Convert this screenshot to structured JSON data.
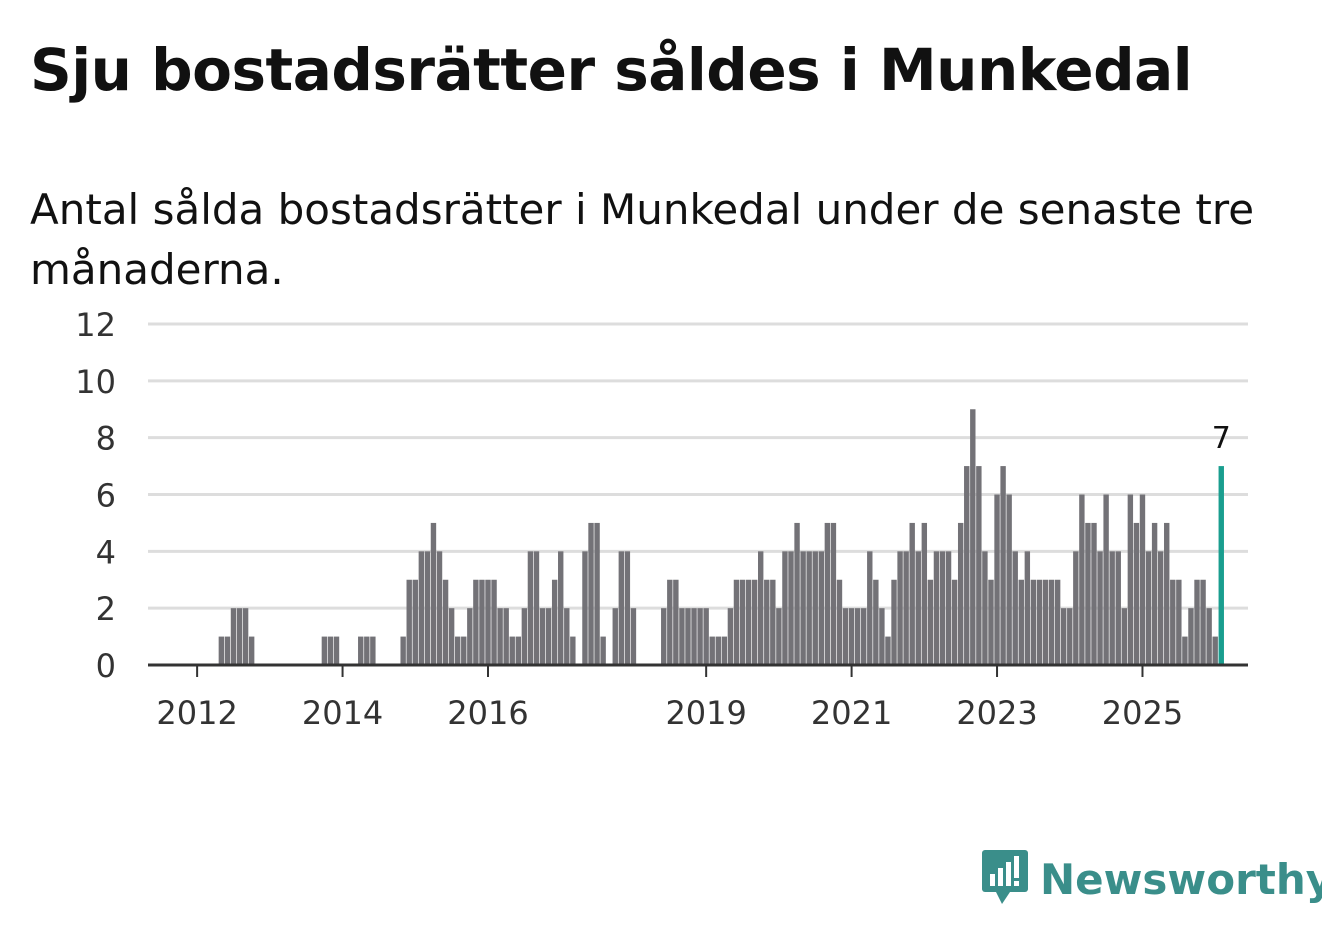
{
  "header": {
    "title": "Sju bostadsrätter såldes i Munkedal",
    "subtitle": "Antal sålda bostadsrätter i Munkedal under de senaste tre månaderna."
  },
  "brand": {
    "name": "Newsworthy",
    "icon": "newsworthy-logo-icon",
    "color": "#3a8e8a"
  },
  "colors": {
    "bar": "#737277",
    "highlight": "#1a9e8f",
    "grid": "#dddddd",
    "axis": "#333333"
  },
  "chart_data": {
    "type": "bar",
    "title": "Sju bostadsrätter såldes i Munkedal",
    "subtitle": "Antal sålda bostadsrätter i Munkedal under de senaste tre månaderna.",
    "xlabel": "",
    "ylabel": "",
    "ylim": [
      0,
      12
    ],
    "yticks": [
      "0",
      "2",
      "4",
      "6",
      "8",
      "10",
      "12"
    ],
    "start": "2011-06",
    "frequency": "month",
    "xticks": [
      {
        "label": "2012",
        "index": 7
      },
      {
        "label": "2014",
        "index": 31
      },
      {
        "label": "2016",
        "index": 55
      },
      {
        "label": "2019",
        "index": 91
      },
      {
        "label": "2021",
        "index": 115
      },
      {
        "label": "2023",
        "index": 139
      },
      {
        "label": "2025",
        "index": 163
      }
    ],
    "values": [
      0,
      0,
      0,
      0,
      0,
      0,
      0,
      0,
      0,
      0,
      0,
      1,
      1,
      2,
      2,
      2,
      1,
      0,
      0,
      0,
      0,
      0,
      0,
      0,
      0,
      0,
      0,
      0,
      1,
      1,
      1,
      0,
      0,
      0,
      1,
      1,
      1,
      0,
      0,
      0,
      0,
      1,
      3,
      3,
      4,
      4,
      5,
      4,
      3,
      2,
      1,
      1,
      2,
      3,
      3,
      3,
      3,
      2,
      2,
      1,
      1,
      2,
      4,
      4,
      2,
      2,
      3,
      4,
      2,
      1,
      0,
      4,
      5,
      5,
      1,
      0,
      2,
      4,
      4,
      2,
      0,
      0,
      0,
      0,
      2,
      3,
      3,
      2,
      2,
      2,
      2,
      2,
      1,
      1,
      1,
      2,
      3,
      3,
      3,
      3,
      4,
      3,
      3,
      2,
      4,
      4,
      5,
      4,
      4,
      4,
      4,
      5,
      5,
      3,
      2,
      2,
      2,
      2,
      4,
      3,
      2,
      1,
      3,
      4,
      4,
      5,
      4,
      5,
      3,
      4,
      4,
      4,
      3,
      5,
      7,
      9,
      7,
      4,
      3,
      6,
      7,
      6,
      4,
      3,
      4,
      3,
      3,
      3,
      3,
      3,
      2,
      2,
      4,
      6,
      5,
      5,
      4,
      6,
      4,
      4,
      2,
      6,
      5,
      6,
      4,
      5,
      4,
      5,
      3,
      3,
      1,
      2,
      3,
      3,
      2,
      1,
      7
    ],
    "highlight_last": true,
    "highlight_label": "7"
  }
}
